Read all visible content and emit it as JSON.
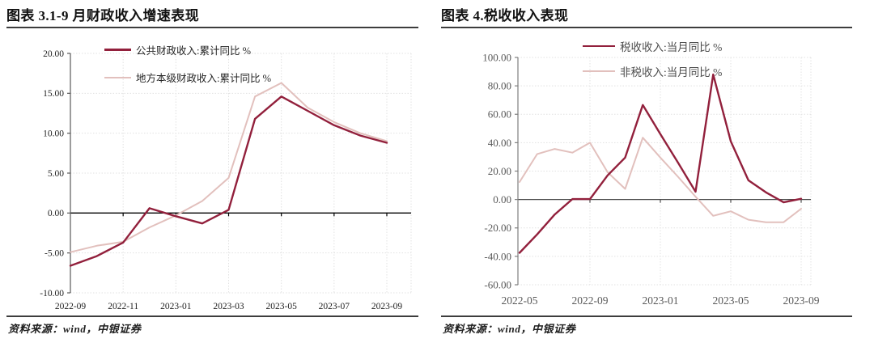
{
  "panels": [
    {
      "title": "图表 3.1-9 月财政收入增速表现",
      "source": "资料来源：wind，中银证券"
    },
    {
      "title": "图表 4.税收收入表现",
      "source": "资料来源：wind，中银证券"
    }
  ],
  "colors": {
    "accent_dark_red": "#92203C",
    "accent_pink": "#E2C0BD",
    "grid": "#e1e1e1",
    "left_axis_text": "#1f1f1f",
    "right_axis_text": "#595959",
    "rule": "#3d3d3d"
  },
  "chart_data": [
    {
      "id": "fiscal-revenue-growth",
      "type": "line",
      "title": "图表 3.1-9 月财政收入增速表现",
      "xlabel": "",
      "ylabel": "",
      "x": [
        "2022-09",
        "2022-10",
        "2022-11",
        "2022-12",
        "2023-01",
        "2023-02",
        "2023-03",
        "2023-04",
        "2023-05",
        "2023-06",
        "2023-07",
        "2023-08",
        "2023-09"
      ],
      "x_tick_labels": [
        "2022-09",
        "2022-11",
        "2023-01",
        "2023-03",
        "2023-05",
        "2023-07",
        "2023-09"
      ],
      "ylim": [
        -10,
        20
      ],
      "ytick_step": 5,
      "ytick_labels": [
        "20.00",
        "15.00",
        "10.00",
        "5.00",
        "0.00",
        "-5.00",
        "-10.00"
      ],
      "grid": "dotted",
      "legend_position": "top-left-inside",
      "series": [
        {
          "name": "公共财政收入:累计同比 %",
          "color": "#92203C",
          "width": 2.4,
          "values": [
            -6.6,
            -5.4,
            -3.7,
            0.6,
            -0.4,
            -1.3,
            0.4,
            11.8,
            14.6,
            12.8,
            11.0,
            9.7,
            8.8
          ]
        },
        {
          "name": "地方本级财政收入:累计同比 %",
          "color": "#E2C0BD",
          "width": 2,
          "values": [
            -4.9,
            -4.1,
            -3.6,
            -1.8,
            -0.3,
            1.5,
            4.4,
            14.6,
            16.3,
            13.2,
            11.4,
            10.0,
            9.0
          ]
        }
      ]
    },
    {
      "id": "tax-revenue-performance",
      "type": "line",
      "title": "图表 4.税收收入表现",
      "xlabel": "",
      "ylabel": "",
      "x": [
        "2022-05",
        "2022-06",
        "2022-07",
        "2022-08",
        "2022-09",
        "2022-10",
        "2022-11",
        "2022-12",
        "2023-01",
        "2023-02",
        "2023-03",
        "2023-04",
        "2023-05",
        "2023-06",
        "2023-07",
        "2023-08",
        "2023-09"
      ],
      "x_tick_labels": [
        "2022-05",
        "2022-09",
        "2023-01",
        "2023-05",
        "2023-09"
      ],
      "ylim": [
        -60,
        100
      ],
      "ytick_step": 20,
      "ytick_labels": [
        "100.00",
        "80.00",
        "60.00",
        "40.00",
        "20.00",
        "0.00",
        "-20.00",
        "-40.00",
        "-60.00"
      ],
      "grid": "dotted",
      "legend_position": "top-center-inside",
      "series": [
        {
          "name": "税收收入:当月同比 %",
          "color": "#92203C",
          "width": 2.4,
          "values": [
            -37.5,
            -24.5,
            -10.5,
            0.3,
            0.3,
            17.0,
            29.5,
            66.5,
            46.0,
            26.0,
            5.5,
            88.0,
            41.0,
            13.5,
            5.0,
            -2.0,
            0.5
          ]
        },
        {
          "name": "非税收入:当月同比 %",
          "color": "#E2C0BD",
          "width": 2,
          "values": [
            12.3,
            32.0,
            35.6,
            33.0,
            40.0,
            19.2,
            7.5,
            43.5,
            29.5,
            16.0,
            2.0,
            -11.5,
            -8.3,
            -14.2,
            -16.0,
            -16.0,
            -6.5
          ]
        }
      ]
    }
  ]
}
